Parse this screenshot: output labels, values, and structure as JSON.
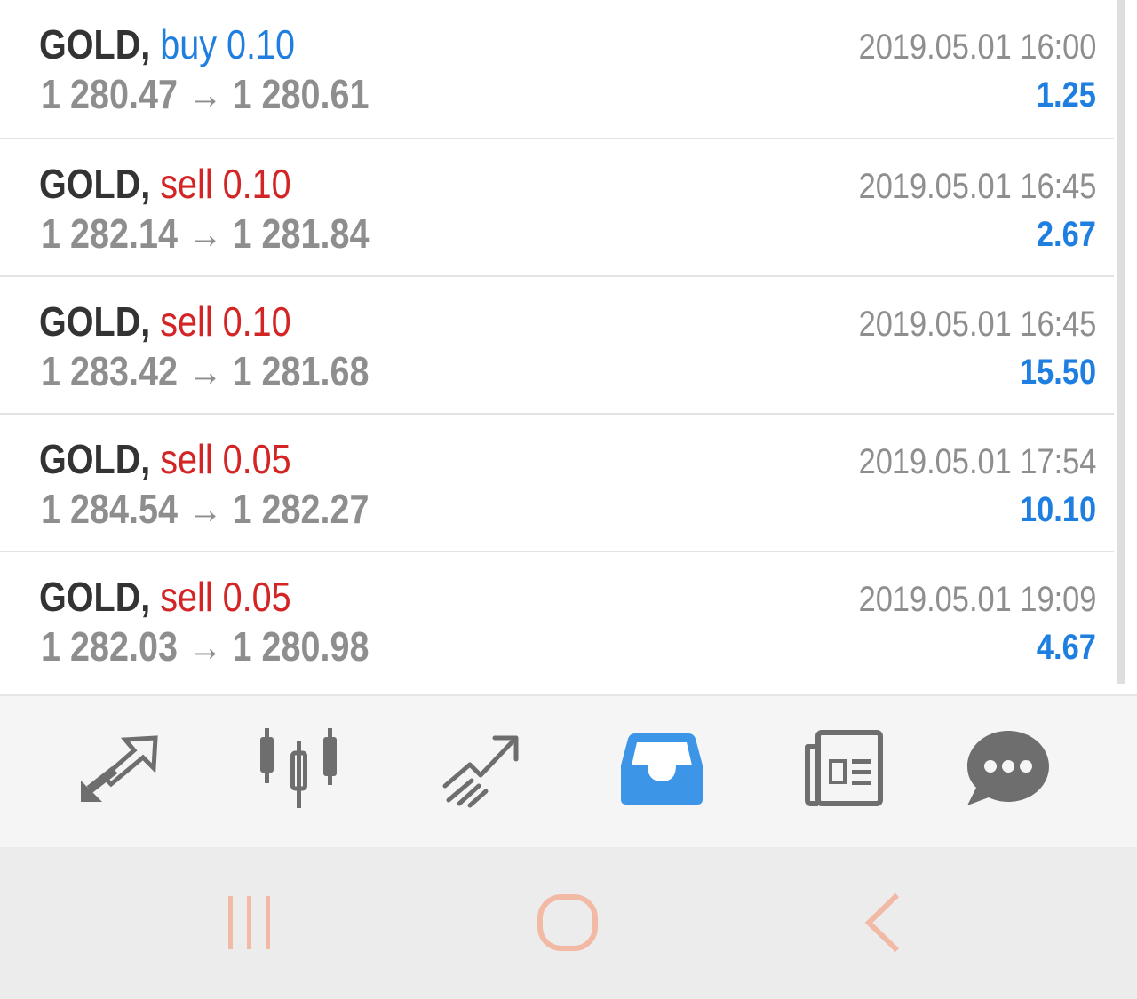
{
  "deals": [
    {
      "symbol": "GOLD,",
      "direction": "buy",
      "volume": "0.10",
      "open_price": "1 280.47",
      "arrow": "→",
      "close_price": "1 280.61",
      "time": "2019.05.01 16:00",
      "profit": "1.25"
    },
    {
      "symbol": "GOLD,",
      "direction": "sell",
      "volume": "0.10",
      "open_price": "1 282.14",
      "arrow": "→",
      "close_price": "1 281.84",
      "time": "2019.05.01 16:45",
      "profit": "2.67"
    },
    {
      "symbol": "GOLD,",
      "direction": "sell",
      "volume": "0.10",
      "open_price": "1 283.42",
      "arrow": "→",
      "close_price": "1 281.68",
      "time": "2019.05.01 16:45",
      "profit": "15.50"
    },
    {
      "symbol": "GOLD,",
      "direction": "sell",
      "volume": "0.05",
      "open_price": "1 284.54",
      "arrow": "→",
      "close_price": "1 282.27",
      "time": "2019.05.01 17:54",
      "profit": "10.10"
    },
    {
      "symbol": "GOLD,",
      "direction": "sell",
      "volume": "0.05",
      "open_price": "1 282.03",
      "arrow": "→",
      "close_price": "1 280.98",
      "time": "2019.05.01 19:09",
      "profit": "4.67"
    }
  ],
  "colors": {
    "buy": "#1e7fe0",
    "sell": "#d32525",
    "profit": "#1e7fe0",
    "muted": "#8e8e8e",
    "icon": "#6e6e6e",
    "active_tab": "#3d95e8",
    "system_nav": "#f2b9a4"
  },
  "tabs": [
    {
      "icon": "quotes-arrows-icon",
      "active": false
    },
    {
      "icon": "candlestick-chart-icon",
      "active": false
    },
    {
      "icon": "trade-trend-icon",
      "active": false
    },
    {
      "icon": "history-inbox-icon",
      "active": true
    },
    {
      "icon": "news-icon",
      "active": false
    },
    {
      "icon": "chat-icon",
      "active": false
    }
  ],
  "system_nav": [
    {
      "icon": "recent-apps-icon"
    },
    {
      "icon": "home-icon"
    },
    {
      "icon": "back-icon"
    }
  ]
}
